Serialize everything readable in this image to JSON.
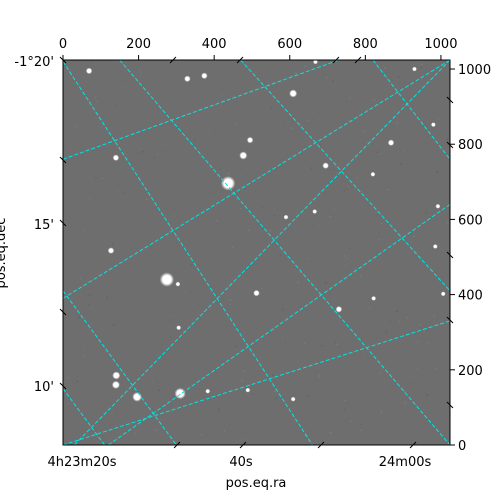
{
  "chart_data": {
    "type": "image",
    "title": "",
    "xlabel": "pos.eq.ra",
    "ylabel": "pos.eq.dec",
    "pixel_axes": {
      "x_range": [
        0,
        1024
      ],
      "y_range": [
        0,
        1024
      ],
      "x_ticks": [
        0,
        200,
        400,
        600,
        800,
        1000
      ],
      "y_ticks": [
        0,
        200,
        400,
        600,
        800,
        1000
      ]
    },
    "ra_ticks": [
      "4h23m20s",
      "40s",
      "24m00s"
    ],
    "dec_ticks": [
      "-1°20'",
      "15'",
      "10'"
    ],
    "grid": true,
    "grid_color": "#00e5e5",
    "image_background": "#6e6e6e",
    "stars": [
      {
        "x": 437,
        "y": 696,
        "r": 4.5
      },
      {
        "x": 275,
        "y": 440,
        "r": 4.5
      },
      {
        "x": 310,
        "y": 137,
        "r": 3.5
      },
      {
        "x": 196,
        "y": 128,
        "r": 3
      },
      {
        "x": 140,
        "y": 160,
        "r": 2.5
      },
      {
        "x": 141,
        "y": 185,
        "r": 2.5
      },
      {
        "x": 477,
        "y": 770,
        "r": 2.5
      },
      {
        "x": 609,
        "y": 935,
        "r": 2.5
      },
      {
        "x": 495,
        "y": 811,
        "r": 2
      },
      {
        "x": 374,
        "y": 982,
        "r": 2
      },
      {
        "x": 329,
        "y": 974,
        "r": 2
      },
      {
        "x": 69,
        "y": 995,
        "r": 2
      },
      {
        "x": 140,
        "y": 764,
        "r": 2
      },
      {
        "x": 695,
        "y": 743,
        "r": 2
      },
      {
        "x": 868,
        "y": 804,
        "r": 2
      },
      {
        "x": 127,
        "y": 517,
        "r": 2
      },
      {
        "x": 512,
        "y": 404,
        "r": 2
      },
      {
        "x": 730,
        "y": 361,
        "r": 2
      },
      {
        "x": 666,
        "y": 621,
        "r": 1.5
      },
      {
        "x": 985,
        "y": 528,
        "r": 1.5
      },
      {
        "x": 609,
        "y": 122,
        "r": 1.5
      },
      {
        "x": 992,
        "y": 635,
        "r": 1.5
      },
      {
        "x": 1006,
        "y": 402,
        "r": 1.5
      },
      {
        "x": 822,
        "y": 390,
        "r": 1.5
      },
      {
        "x": 590,
        "y": 606,
        "r": 1.5
      },
      {
        "x": 383,
        "y": 143,
        "r": 1.5
      },
      {
        "x": 489,
        "y": 146,
        "r": 1.5
      },
      {
        "x": 306,
        "y": 312,
        "r": 1.5
      },
      {
        "x": 304,
        "y": 428,
        "r": 1.5
      },
      {
        "x": 980,
        "y": 852,
        "r": 1.5
      },
      {
        "x": 930,
        "y": 1000,
        "r": 1.5
      },
      {
        "x": 668,
        "y": 1019,
        "r": 1.5
      },
      {
        "x": 820,
        "y": 720,
        "r": 1.5
      }
    ],
    "grid_lines": [
      {
        "x1": 0,
        "y1": 760,
        "x2": 730,
        "y2": 1024
      },
      {
        "x1": 0,
        "y1": 390,
        "x2": 1024,
        "y2": 1024
      },
      {
        "x1": 0,
        "y1": 0,
        "x2": 1024,
        "y2": 330
      },
      {
        "x1": 120,
        "y1": 0,
        "x2": 1024,
        "y2": 640
      },
      {
        "x1": 30,
        "y1": 0,
        "x2": 1024,
        "y2": 1024
      },
      {
        "x1": 0,
        "y1": 1020,
        "x2": 660,
        "y2": 0
      },
      {
        "x1": 0,
        "y1": 410,
        "x2": 300,
        "y2": 0
      },
      {
        "x1": 0,
        "y1": 150,
        "x2": 110,
        "y2": 0
      },
      {
        "x1": 150,
        "y1": 1024,
        "x2": 1024,
        "y2": 0
      },
      {
        "x1": 470,
        "y1": 1024,
        "x2": 1024,
        "y2": 410
      },
      {
        "x1": 820,
        "y1": 1024,
        "x2": 1024,
        "y2": 760
      }
    ]
  }
}
